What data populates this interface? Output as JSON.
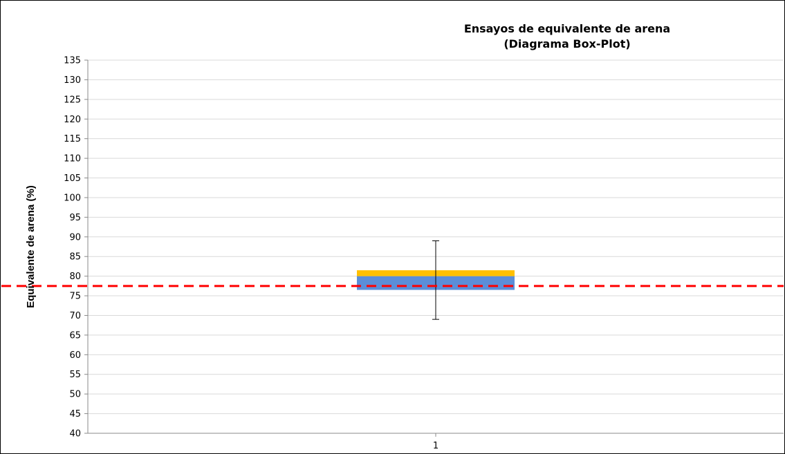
{
  "chart_data": {
    "type": "box",
    "title": "Ensayos de equivalente de arena",
    "subtitle": "(Diagrama Box-Plot)",
    "xlabel": "",
    "ylabel": "Equivalente de arena (%)",
    "categories": [
      "1"
    ],
    "ylim": [
      40,
      135
    ],
    "y_ticks": [
      "40",
      "45",
      "50",
      "55",
      "60",
      "65",
      "70",
      "75",
      "80",
      "85",
      "90",
      "95",
      "100",
      "105",
      "110",
      "115",
      "120",
      "125",
      "130",
      "135"
    ],
    "grid": true,
    "box": {
      "min": 69,
      "q1": 76.5,
      "median": 80,
      "q3": 81.5,
      "max": 89
    },
    "reference_line": {
      "value": 77.5,
      "style": "dashed"
    },
    "colors": {
      "lower_box": "#5b8ed8",
      "upper_box": "#ffc000",
      "reference_line": "#ff0000",
      "whisker": "#000000",
      "grid": "#d9d9d9"
    }
  }
}
